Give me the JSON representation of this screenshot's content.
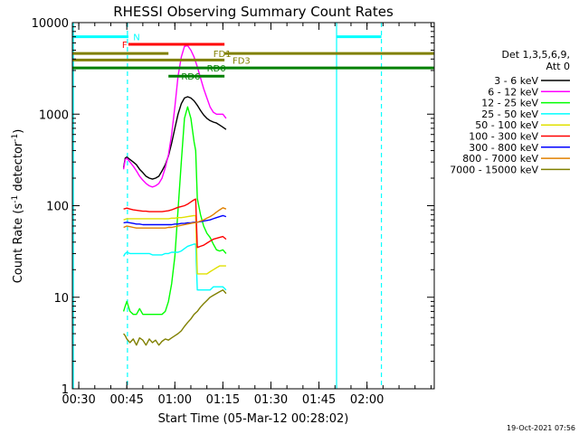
{
  "chart_data": {
    "type": "line",
    "title": "RHESSI Observing Summary Count Rates",
    "xlabel": "Start Time (05-Mar-12 00:28:02)",
    "ylabel_parts": {
      "base": "Count Rate (s",
      "sup1": "-1",
      "mid": " detector",
      "sup2": "-1",
      "end": ")"
    },
    "xlim_minutes": [
      0.0,
      113.0
    ],
    "x_ticks": [
      {
        "min": 2,
        "label": "00:30"
      },
      {
        "min": 17,
        "label": "00:45"
      },
      {
        "min": 32,
        "label": "01:00"
      },
      {
        "min": 47,
        "label": "01:15"
      },
      {
        "min": 62,
        "label": "01:30"
      },
      {
        "min": 77,
        "label": "01:45"
      },
      {
        "min": 92,
        "label": "02:00"
      }
    ],
    "ylim": [
      1,
      10000
    ],
    "y_scale": "log",
    "y_ticks": [
      {
        "value": 1,
        "label": "1"
      },
      {
        "value": 10,
        "label": "10"
      },
      {
        "value": 100,
        "label": "100"
      },
      {
        "value": 1000,
        "label": "1000"
      },
      {
        "value": 10000,
        "label": "10000"
      }
    ],
    "legend_title": [
      "Det 1,3,5,6,9,",
      "Att 0"
    ],
    "series": [
      {
        "name": "3 - 6 keV",
        "color": "#000000",
        "x": [
          16,
          16.5,
          17,
          18,
          19,
          20,
          21,
          22,
          23,
          24,
          25,
          26,
          27,
          28,
          29,
          30,
          31,
          32,
          33,
          34,
          35,
          36,
          37,
          38,
          39,
          40,
          41,
          42,
          43,
          44,
          45,
          46,
          47,
          48
        ],
        "y": [
          260,
          330,
          340,
          320,
          300,
          280,
          250,
          230,
          210,
          200,
          195,
          200,
          210,
          240,
          280,
          350,
          480,
          700,
          1000,
          1300,
          1500,
          1550,
          1500,
          1400,
          1250,
          1100,
          980,
          900,
          850,
          820,
          800,
          760,
          720,
          680
        ]
      },
      {
        "name": "6 - 12 keV",
        "color": "#ff00ff",
        "x": [
          16,
          16.5,
          17,
          18,
          19,
          20,
          21,
          22,
          23,
          24,
          25,
          26,
          27,
          28,
          29,
          30,
          31,
          32,
          33,
          34,
          35,
          36,
          37,
          38,
          39,
          40,
          41,
          42,
          43,
          44,
          45,
          46,
          47,
          48
        ],
        "y": [
          250,
          320,
          330,
          300,
          270,
          240,
          210,
          190,
          175,
          165,
          160,
          165,
          175,
          200,
          260,
          360,
          600,
          1200,
          2600,
          4200,
          5500,
          5600,
          5000,
          4200,
          3300,
          2500,
          1900,
          1500,
          1200,
          1050,
          1000,
          1000,
          1000,
          900
        ]
      },
      {
        "name": "12 - 25 keV",
        "color": "#00ff00",
        "x": [
          16,
          16.5,
          17,
          18,
          19,
          20,
          21,
          22,
          23,
          24,
          25,
          26,
          27,
          28,
          29,
          30,
          31,
          32,
          33,
          34,
          35,
          36,
          37,
          38,
          38.5,
          39,
          40,
          41,
          42,
          43,
          44,
          45,
          46,
          47,
          48
        ],
        "y": [
          7,
          8,
          9,
          7,
          6.5,
          6.5,
          7.5,
          6.5,
          6.5,
          6.5,
          6.5,
          6.5,
          6.5,
          6.5,
          7,
          9,
          14,
          28,
          90,
          300,
          900,
          1200,
          900,
          500,
          400,
          120,
          80,
          60,
          50,
          45,
          38,
          33,
          32,
          33,
          30
        ]
      },
      {
        "name": "25 - 50 keV",
        "color": "#00ffff",
        "x": [
          16,
          16.5,
          17,
          18,
          19,
          20,
          21,
          22,
          23,
          24,
          25,
          26,
          27,
          28,
          29,
          30,
          31,
          32,
          33,
          34,
          35,
          36,
          37,
          38,
          38.5,
          39,
          40,
          41,
          42,
          43,
          44,
          45,
          46,
          47,
          48
        ],
        "y": [
          28,
          30,
          31,
          30,
          30,
          30,
          30,
          30,
          30,
          30,
          29,
          29,
          29,
          29,
          30,
          30,
          31,
          31,
          31,
          32,
          34,
          36,
          37,
          38,
          38,
          12,
          12,
          12,
          12,
          12,
          13,
          13,
          13,
          13,
          12
        ]
      },
      {
        "name": "50 - 100 keV",
        "color": "#e0e000",
        "x": [
          16,
          17,
          18,
          19,
          20,
          21,
          22,
          23,
          24,
          25,
          26,
          27,
          28,
          29,
          30,
          31,
          32,
          33,
          34,
          35,
          36,
          37,
          38,
          38.5,
          39,
          40,
          41,
          42,
          43,
          44,
          45,
          46,
          47,
          48
        ],
        "y": [
          70,
          72,
          72,
          72,
          72,
          72,
          72,
          72,
          72,
          72,
          72,
          72,
          72,
          72,
          72,
          73,
          73,
          74,
          74,
          75,
          76,
          77,
          78,
          78,
          18,
          18,
          18,
          18,
          19,
          20,
          21,
          22,
          22,
          22
        ]
      },
      {
        "name": "100 - 300 keV",
        "color": "#ff0000",
        "x": [
          16,
          17,
          18,
          19,
          20,
          21,
          22,
          23,
          24,
          25,
          26,
          27,
          28,
          29,
          30,
          31,
          32,
          33,
          34,
          35,
          36,
          37,
          38,
          38.5,
          39,
          40,
          41,
          42,
          43,
          44,
          45,
          46,
          47,
          48
        ],
        "y": [
          92,
          94,
          92,
          90,
          89,
          88,
          87,
          87,
          86,
          86,
          86,
          86,
          86,
          87,
          88,
          90,
          93,
          96,
          98,
          100,
          104,
          110,
          116,
          118,
          35,
          36,
          37,
          39,
          41,
          43,
          44,
          45,
          46,
          43
        ]
      },
      {
        "name": "300 - 800 keV",
        "color": "#0000ff",
        "x": [
          16,
          17,
          18,
          19,
          20,
          21,
          22,
          23,
          24,
          25,
          26,
          27,
          28,
          29,
          30,
          31,
          32,
          33,
          34,
          35,
          36,
          37,
          38,
          39,
          40,
          41,
          42,
          43,
          44,
          45,
          46,
          47,
          48
        ],
        "y": [
          65,
          66,
          65,
          64,
          63,
          63,
          62,
          62,
          62,
          62,
          62,
          62,
          62,
          62,
          62,
          62,
          63,
          63,
          64,
          64,
          65,
          65,
          66,
          66,
          67,
          68,
          69,
          70,
          72,
          74,
          76,
          78,
          76
        ]
      },
      {
        "name": "800 - 7000 keV",
        "color": "#e08000",
        "x": [
          16,
          17,
          18,
          19,
          20,
          21,
          22,
          23,
          24,
          25,
          26,
          27,
          28,
          29,
          30,
          31,
          32,
          33,
          34,
          35,
          36,
          37,
          38,
          39,
          40,
          41,
          42,
          43,
          44,
          45,
          46,
          47,
          48
        ],
        "y": [
          58,
          60,
          59,
          58,
          57,
          57,
          57,
          57,
          57,
          57,
          57,
          57,
          57,
          57,
          58,
          58,
          59,
          60,
          61,
          62,
          63,
          64,
          65,
          66,
          68,
          70,
          73,
          76,
          80,
          85,
          90,
          95,
          92
        ]
      },
      {
        "name": "7000 - 15000 keV",
        "color": "#808000",
        "x": [
          16,
          16.5,
          17,
          18,
          19,
          20,
          21,
          22,
          23,
          24,
          25,
          26,
          27,
          28,
          29,
          30,
          31,
          32,
          33,
          34,
          35,
          36,
          37,
          38,
          39,
          40,
          41,
          42,
          43,
          44,
          45,
          46,
          47,
          48
        ],
        "y": [
          4,
          3.8,
          3.5,
          3.2,
          3.5,
          3.0,
          3.6,
          3.4,
          3.0,
          3.5,
          3.2,
          3.4,
          3.0,
          3.3,
          3.5,
          3.4,
          3.6,
          3.8,
          4.0,
          4.3,
          4.8,
          5.3,
          5.8,
          6.5,
          7.0,
          7.8,
          8.5,
          9.2,
          10,
          10.5,
          11,
          11.5,
          12,
          11
        ]
      }
    ],
    "annotations": [
      {
        "label": "N",
        "color": "#00ffff",
        "y": 7000,
        "segments": [
          [
            0,
            17.5
          ],
          [
            82.5,
            96.5
          ]
        ],
        "label_x": 19
      },
      {
        "label": "F",
        "color": "#ff0000",
        "y": 5800,
        "segments": [
          [
            17.5,
            47.5
          ]
        ],
        "label_x": 15.5
      },
      {
        "label": "FD1",
        "color": "#808000",
        "y": 4600,
        "segments": [
          [
            0,
            30
          ],
          [
            47.5,
            113
          ]
        ],
        "label_x": 44
      },
      {
        "label": "FD3",
        "color": "#808000",
        "y": 3900,
        "segments": [
          [
            0,
            47.5
          ]
        ],
        "label_x": 50
      },
      {
        "label": "RD0",
        "color": "#008000",
        "y": 3200,
        "segments": [
          [
            0,
            113
          ]
        ],
        "label_x": 42
      },
      {
        "label": "RD6",
        "color": "#008000",
        "y": 2600,
        "segments": [
          [
            30,
            47.5
          ]
        ],
        "label_x": 34
      }
    ],
    "vertical_markers": [
      {
        "min": 0.3,
        "color": "#00ffff",
        "style": "solid"
      },
      {
        "min": 17.2,
        "color": "#00ffff",
        "style": "dashed"
      },
      {
        "min": 82.5,
        "color": "#00ffff",
        "style": "solid"
      },
      {
        "min": 96.5,
        "color": "#00ffff",
        "style": "dashed"
      }
    ],
    "timestamp": "19-Oct-2021 07:56"
  }
}
